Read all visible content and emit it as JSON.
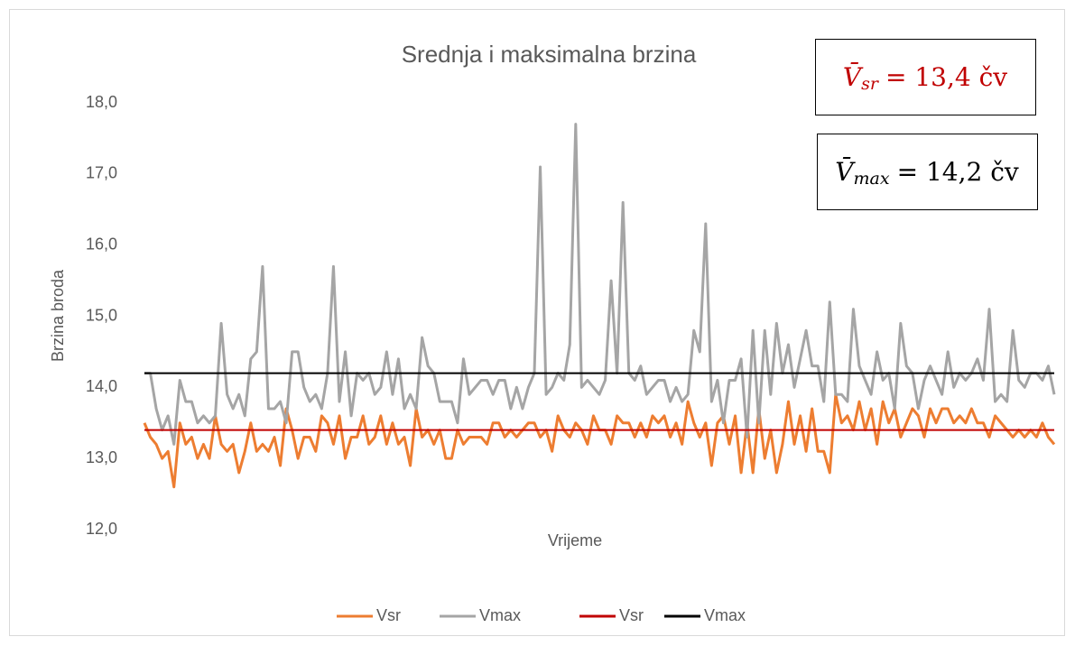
{
  "chart_data": {
    "type": "line",
    "title": "Srednja i maksimalna brzina",
    "y_label": "Brzina broda",
    "x_label": "Vrijeme",
    "ylim": [
      12,
      18
    ],
    "yticks": [
      {
        "value": 12,
        "label": "12,0"
      },
      {
        "value": 13,
        "label": "13,0"
      },
      {
        "value": 14,
        "label": "14,0"
      },
      {
        "value": 15,
        "label": "15,0"
      },
      {
        "value": 16,
        "label": "16,0"
      },
      {
        "value": 17,
        "label": "17,0"
      },
      {
        "value": 18,
        "label": "18,0"
      }
    ],
    "grid": false,
    "legend": "bottom",
    "series": [
      {
        "name": "Vsr",
        "color": "#ed7d31",
        "values": [
          13.5,
          13.3,
          13.2,
          13.0,
          13.1,
          12.6,
          13.5,
          13.2,
          13.3,
          13.0,
          13.2,
          13.0,
          13.6,
          13.2,
          13.1,
          13.2,
          12.8,
          13.1,
          13.5,
          13.1,
          13.2,
          13.1,
          13.3,
          12.9,
          13.7,
          13.4,
          13.0,
          13.3,
          13.3,
          13.1,
          13.6,
          13.5,
          13.2,
          13.6,
          13.0,
          13.3,
          13.3,
          13.6,
          13.2,
          13.3,
          13.6,
          13.2,
          13.5,
          13.2,
          13.3,
          12.9,
          13.7,
          13.3,
          13.4,
          13.2,
          13.4,
          13.0,
          13.0,
          13.4,
          13.2,
          13.3,
          13.3,
          13.3,
          13.2,
          13.5,
          13.5,
          13.3,
          13.4,
          13.3,
          13.4,
          13.5,
          13.5,
          13.3,
          13.4,
          13.1,
          13.6,
          13.4,
          13.3,
          13.5,
          13.4,
          13.2,
          13.6,
          13.4,
          13.4,
          13.2,
          13.6,
          13.5,
          13.5,
          13.3,
          13.5,
          13.3,
          13.6,
          13.5,
          13.6,
          13.3,
          13.5,
          13.2,
          13.8,
          13.5,
          13.3,
          13.5,
          12.9,
          13.5,
          13.6,
          13.2,
          13.6,
          12.8,
          13.5,
          12.8,
          13.7,
          13.0,
          13.4,
          12.8,
          13.2,
          13.8,
          13.2,
          13.6,
          13.1,
          13.7,
          13.1,
          13.1,
          12.8,
          13.9,
          13.5,
          13.6,
          13.4,
          13.8,
          13.4,
          13.7,
          13.2,
          13.8,
          13.5,
          13.7,
          13.3,
          13.5,
          13.7,
          13.6,
          13.3,
          13.7,
          13.5,
          13.7,
          13.7,
          13.5,
          13.6,
          13.5,
          13.7,
          13.5,
          13.5,
          13.3,
          13.6,
          13.5,
          13.4,
          13.3,
          13.4,
          13.3,
          13.4,
          13.3,
          13.5,
          13.3,
          13.2
        ]
      },
      {
        "name": "Vmax",
        "color": "#a5a5a5",
        "values": [
          14.2,
          14.2,
          13.7,
          13.4,
          13.6,
          13.2,
          14.1,
          13.8,
          13.8,
          13.5,
          13.6,
          13.5,
          13.6,
          14.9,
          13.9,
          13.7,
          13.9,
          13.6,
          14.4,
          14.5,
          15.7,
          13.7,
          13.7,
          13.8,
          13.5,
          14.5,
          14.5,
          14.0,
          13.8,
          13.9,
          13.7,
          14.2,
          15.7,
          13.8,
          14.5,
          13.6,
          14.2,
          14.1,
          14.2,
          13.9,
          14.0,
          14.5,
          13.9,
          14.4,
          13.7,
          13.9,
          13.7,
          14.7,
          14.3,
          14.2,
          13.8,
          13.8,
          13.8,
          13.5,
          14.4,
          13.9,
          14.0,
          14.1,
          14.1,
          13.9,
          14.1,
          14.1,
          13.7,
          14.0,
          13.7,
          14.0,
          14.2,
          17.1,
          13.9,
          14.0,
          14.2,
          14.1,
          14.6,
          17.7,
          14.0,
          14.1,
          14.0,
          13.9,
          14.1,
          15.5,
          14.2,
          16.6,
          14.2,
          14.1,
          14.3,
          13.9,
          14.0,
          14.1,
          14.1,
          13.8,
          14.0,
          13.8,
          13.9,
          14.8,
          14.5,
          16.3,
          13.8,
          14.1,
          13.5,
          14.1,
          14.1,
          14.4,
          13.3,
          14.8,
          13.5,
          14.8,
          13.9,
          14.9,
          14.2,
          14.6,
          14.0,
          14.4,
          14.8,
          14.3,
          14.3,
          13.8,
          15.2,
          13.9,
          13.9,
          13.8,
          15.1,
          14.3,
          14.1,
          13.9,
          14.5,
          14.1,
          14.2,
          13.7,
          14.9,
          14.3,
          14.2,
          13.7,
          14.1,
          14.3,
          14.1,
          13.9,
          14.5,
          14.0,
          14.2,
          14.1,
          14.2,
          14.4,
          14.1,
          15.1,
          13.8,
          13.9,
          13.8,
          14.8,
          14.1,
          14.0,
          14.2,
          14.2,
          14.1,
          14.3,
          13.9
        ]
      }
    ],
    "reference_lines": [
      {
        "name": "Vsr",
        "color": "#c00000",
        "value": 13.4
      },
      {
        "name": "Vmax",
        "color": "#000000",
        "value": 14.2
      }
    ],
    "annotations": [
      {
        "symbol": "V̄",
        "subscript": "sr",
        "text": "= 13,4 čv",
        "color": "#c00000"
      },
      {
        "symbol": "V̄",
        "subscript": "max",
        "text": "= 14,2 čv",
        "color": "#000000"
      }
    ]
  }
}
